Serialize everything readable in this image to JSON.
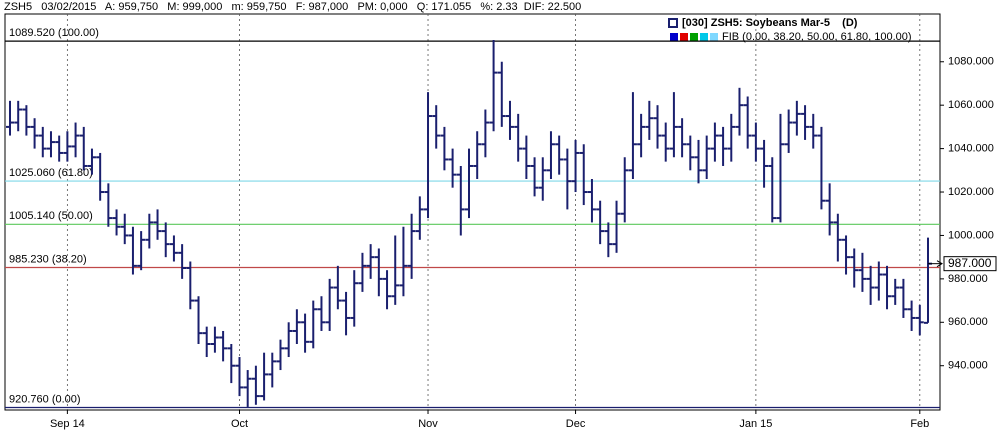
{
  "chart_data": {
    "type": "ohlc",
    "header": "ZSH5   03/02/2015   A: 959,750   M: 999,000   m: 959,750   F: 987,000   PM: 0,000   Q: 171.055   %: 2.33  DIF: 22.500",
    "legend_title": "[030] ZSH5: Soybeans Mar-5    (D)",
    "legend_fib": "FIB (0.00, 38.20, 50.00, 61.80, 100.00)",
    "legend_swatches": [
      "#0000cc",
      "#e00000",
      "#00a000",
      "#00c8e8",
      "#7fd8ff"
    ],
    "color": "#1a1f6e",
    "grid": "x",
    "ylim": [
      919.6,
      1102
    ],
    "yticks": [
      {
        "value": 940,
        "label": "940.000"
      },
      {
        "value": 960,
        "label": "960.000"
      },
      {
        "value": 980,
        "label": "980.000"
      },
      {
        "value": 1000,
        "label": "1000.000"
      },
      {
        "value": 1020,
        "label": "1020.000"
      },
      {
        "value": 1040,
        "label": "1040.000"
      },
      {
        "value": 1060,
        "label": "1060.000"
      },
      {
        "value": 1080,
        "label": "1080.000"
      }
    ],
    "last_price": {
      "value": 987,
      "label": "987.000"
    },
    "fib_levels": [
      {
        "value": 1089.52,
        "label": "1089.520 (100.00)",
        "color": "#000000"
      },
      {
        "value": 1025.06,
        "label": "1025.060 (61.80)",
        "color": "#7fd8e8"
      },
      {
        "value": 1005.14,
        "label": "1005.140 (50.00)",
        "color": "#5cc85c"
      },
      {
        "value": 985.23,
        "label": "985.230 (38.20)",
        "color": "#c04848"
      },
      {
        "value": 920.76,
        "label": "920.760 (0.00)",
        "color": "#1a1f6e"
      }
    ],
    "categories": [
      null,
      null,
      null,
      null,
      null,
      null,
      null,
      "Sep 14",
      null,
      null,
      null,
      null,
      null,
      null,
      null,
      null,
      null,
      null,
      null,
      null,
      null,
      null,
      null,
      null,
      null,
      null,
      null,
      null,
      "Oct",
      null,
      null,
      null,
      null,
      null,
      null,
      null,
      null,
      null,
      null,
      null,
      null,
      null,
      null,
      null,
      null,
      null,
      null,
      null,
      null,
      null,
      null,
      "Nov",
      null,
      null,
      null,
      null,
      null,
      null,
      null,
      null,
      null,
      null,
      null,
      null,
      null,
      null,
      null,
      null,
      null,
      "Dec",
      null,
      null,
      null,
      null,
      null,
      null,
      null,
      null,
      null,
      null,
      null,
      null,
      null,
      null,
      null,
      null,
      null,
      null,
      null,
      null,
      null,
      "Jan 15",
      null,
      null,
      null,
      null,
      null,
      null,
      null,
      null,
      null,
      null,
      null,
      null,
      null,
      null,
      null,
      null,
      null,
      null,
      null,
      "Feb",
      null
    ],
    "open": [
      1050,
      1052,
      1058,
      1050,
      1046,
      1040,
      1043,
      1038,
      1041,
      1046,
      1032,
      1036,
      1020,
      1008,
      1004,
      1000,
      986,
      998,
      1006,
      1002,
      996,
      992,
      985,
      970,
      955,
      950,
      953,
      948,
      940,
      930,
      934,
      926,
      936,
      942,
      948,
      956,
      960,
      951,
      966,
      960,
      976,
      970,
      962,
      978,
      986,
      990,
      980,
      972,
      977,
      986,
      1002,
      1012,
      1055,
      1046,
      1035,
      1028,
      1012,
      1032,
      1042,
      1052,
      1075,
      1055,
      1050,
      1040,
      1032,
      1022,
      1030,
      1042,
      1035,
      1025,
      1038,
      1020,
      1012,
      1002,
      996,
      1010,
      1030,
      1042,
      1050,
      1054,
      1046,
      1040,
      1050,
      1042,
      1036,
      1030,
      1040,
      1046,
      1040,
      1050,
      1060,
      1046,
      1040,
      1032,
      1008,
      1042,
      1052,
      1056,
      1050,
      1046,
      1016,
      1006,
      998,
      990,
      984,
      980,
      976,
      982,
      972,
      976,
      966,
      962,
      959.75
    ],
    "high": [
      1062,
      1062,
      1060,
      1054,
      1050,
      1048,
      1046,
      1048,
      1052,
      1050,
      1040,
      1038,
      1024,
      1012,
      1010,
      1004,
      1002,
      1010,
      1012,
      1006,
      1000,
      996,
      988,
      972,
      958,
      958,
      956,
      950,
      944,
      938,
      940,
      946,
      946,
      952,
      960,
      966,
      964,
      970,
      972,
      980,
      986,
      974,
      984,
      992,
      996,
      994,
      984,
      1000,
      1004,
      1010,
      1018,
      1066,
      1060,
      1050,
      1040,
      1032,
      1040,
      1048,
      1058,
      1090,
      1080,
      1062,
      1056,
      1046,
      1036,
      1036,
      1048,
      1046,
      1040,
      1044,
      1042,
      1026,
      1016,
      1006,
      1016,
      1036,
      1066,
      1056,
      1062,
      1060,
      1052,
      1066,
      1054,
      1046,
      1044,
      1046,
      1052,
      1050,
      1056,
      1068,
      1064,
      1052,
      1044,
      1036,
      1056,
      1058,
      1062,
      1060,
      1056,
      1050,
      1024,
      1010,
      1000,
      994,
      992,
      986,
      988,
      986,
      980,
      980,
      970,
      968,
      999
    ],
    "low": [
      1046,
      1048,
      1046,
      1040,
      1036,
      1036,
      1034,
      1034,
      1036,
      1030,
      1028,
      1016,
      1004,
      1000,
      996,
      982,
      984,
      994,
      998,
      990,
      988,
      980,
      966,
      950,
      944,
      946,
      942,
      932,
      926,
      921,
      922,
      924,
      930,
      938,
      944,
      950,
      946,
      948,
      956,
      956,
      966,
      954,
      958,
      974,
      980,
      972,
      966,
      968,
      972,
      980,
      998,
      1008,
      1040,
      1030,
      1022,
      1000,
      1008,
      1026,
      1036,
      1048,
      1050,
      1044,
      1034,
      1026,
      1018,
      1016,
      1026,
      1028,
      1012,
      1020,
      1014,
      1006,
      996,
      990,
      992,
      1006,
      1026,
      1036,
      1044,
      1040,
      1034,
      1036,
      1036,
      1030,
      1024,
      1026,
      1034,
      1032,
      1034,
      1046,
      1040,
      1034,
      1022,
      1006,
      1006,
      1038,
      1046,
      1044,
      1040,
      1012,
      1000,
      988,
      982,
      976,
      974,
      968,
      970,
      966,
      968,
      962,
      956,
      954,
      959.75
    ],
    "close": [
      1052,
      1058,
      1050,
      1046,
      1040,
      1043,
      1038,
      1041,
      1046,
      1032,
      1036,
      1020,
      1008,
      1004,
      1000,
      986,
      998,
      1006,
      1002,
      996,
      992,
      985,
      970,
      955,
      950,
      953,
      948,
      940,
      930,
      934,
      926,
      936,
      942,
      948,
      956,
      960,
      951,
      966,
      960,
      976,
      970,
      962,
      978,
      986,
      990,
      980,
      972,
      977,
      986,
      1002,
      1012,
      1055,
      1046,
      1035,
      1028,
      1012,
      1032,
      1042,
      1052,
      1075,
      1055,
      1050,
      1040,
      1032,
      1022,
      1030,
      1042,
      1035,
      1025,
      1038,
      1020,
      1012,
      1002,
      996,
      1010,
      1030,
      1042,
      1050,
      1054,
      1046,
      1040,
      1050,
      1042,
      1036,
      1030,
      1040,
      1046,
      1040,
      1050,
      1060,
      1046,
      1040,
      1032,
      1008,
      1042,
      1052,
      1056,
      1050,
      1046,
      1016,
      1006,
      998,
      990,
      984,
      980,
      976,
      982,
      972,
      976,
      966,
      962,
      960,
      987
    ]
  }
}
